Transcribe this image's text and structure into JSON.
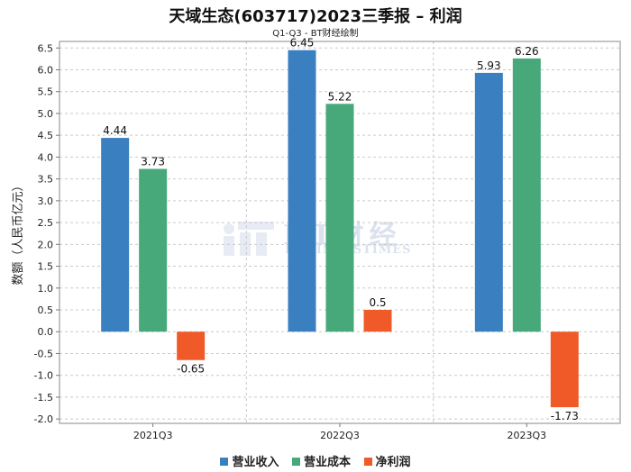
{
  "chart_data": {
    "type": "bar",
    "title": "天域生态(603717)2023三季报 – 利润",
    "subtitle": "Q1-Q3 - BT财经绘制",
    "ylabel": "数额（人民币亿元）",
    "xlabel": "",
    "ylim": [
      -2.1,
      6.65
    ],
    "yticks": [
      "-2.0",
      "-1.5",
      "-1.0",
      "-0.5",
      "0.0",
      "0.5",
      "1.0",
      "1.5",
      "2.0",
      "2.5",
      "3.0",
      "3.5",
      "4.0",
      "4.5",
      "5.0",
      "5.5",
      "6.0",
      "6.5"
    ],
    "categories": [
      "2021Q3",
      "2022Q3",
      "2023Q3"
    ],
    "series": [
      {
        "name": "营业收入",
        "color": "#3a80c0",
        "values": [
          4.44,
          6.45,
          5.93
        ],
        "labels": [
          "4.44",
          "6.45",
          "5.93"
        ]
      },
      {
        "name": "营业成本",
        "color": "#47a87a",
        "values": [
          3.73,
          5.22,
          6.26
        ],
        "labels": [
          "3.73",
          "5.22",
          "6.26"
        ]
      },
      {
        "name": "净利润",
        "color": "#f05a28",
        "values": [
          -0.65,
          0.5,
          -1.73
        ],
        "labels": [
          "-0.65",
          "0.5",
          "-1.73"
        ]
      }
    ],
    "grid": true,
    "legend": "bottom-center"
  },
  "watermark": {
    "text": "BT财经",
    "subtext": "BUSINESSTIMES"
  }
}
